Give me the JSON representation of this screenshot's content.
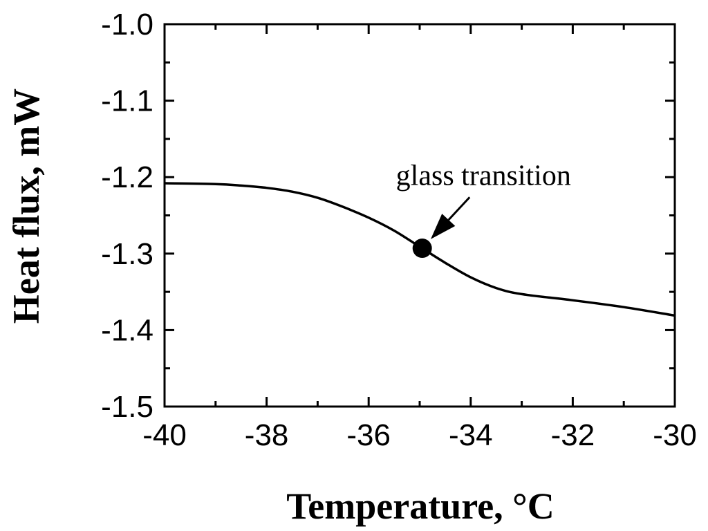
{
  "chart_data": {
    "type": "line",
    "xlabel": "Temperature, °C",
    "ylabel": "Heat flux, mW",
    "xlim": [
      -40,
      -30
    ],
    "ylim": [
      -1.5,
      -1.0
    ],
    "xticks": [
      -40,
      -38,
      -36,
      -34,
      -32,
      -30
    ],
    "yticks": [
      -1.0,
      -1.1,
      -1.2,
      -1.3,
      -1.4,
      -1.5
    ],
    "xtick_labels": [
      "-40",
      "-38",
      "-36",
      "-34",
      "-32",
      "-30"
    ],
    "ytick_labels": [
      "-1.0",
      "-1.1",
      "-1.2",
      "-1.3",
      "-1.4",
      "-1.5"
    ],
    "grid": false,
    "series": [
      {
        "x": [
          -40,
          -39,
          -38.5,
          -38,
          -37.5,
          -37,
          -36.5,
          -36,
          -35.5,
          -35,
          -34.5,
          -34,
          -33.5,
          -33,
          -32,
          -31,
          -30
        ],
        "y": [
          -1.208,
          -1.209,
          -1.211,
          -1.214,
          -1.219,
          -1.227,
          -1.239,
          -1.253,
          -1.27,
          -1.291,
          -1.312,
          -1.331,
          -1.345,
          -1.353,
          -1.361,
          -1.37,
          -1.381
        ]
      }
    ],
    "marker": {
      "x": -34.95,
      "y": -1.293
    },
    "annotation": {
      "text": "glass transition",
      "x": -33.75,
      "y": -1.21
    }
  }
}
